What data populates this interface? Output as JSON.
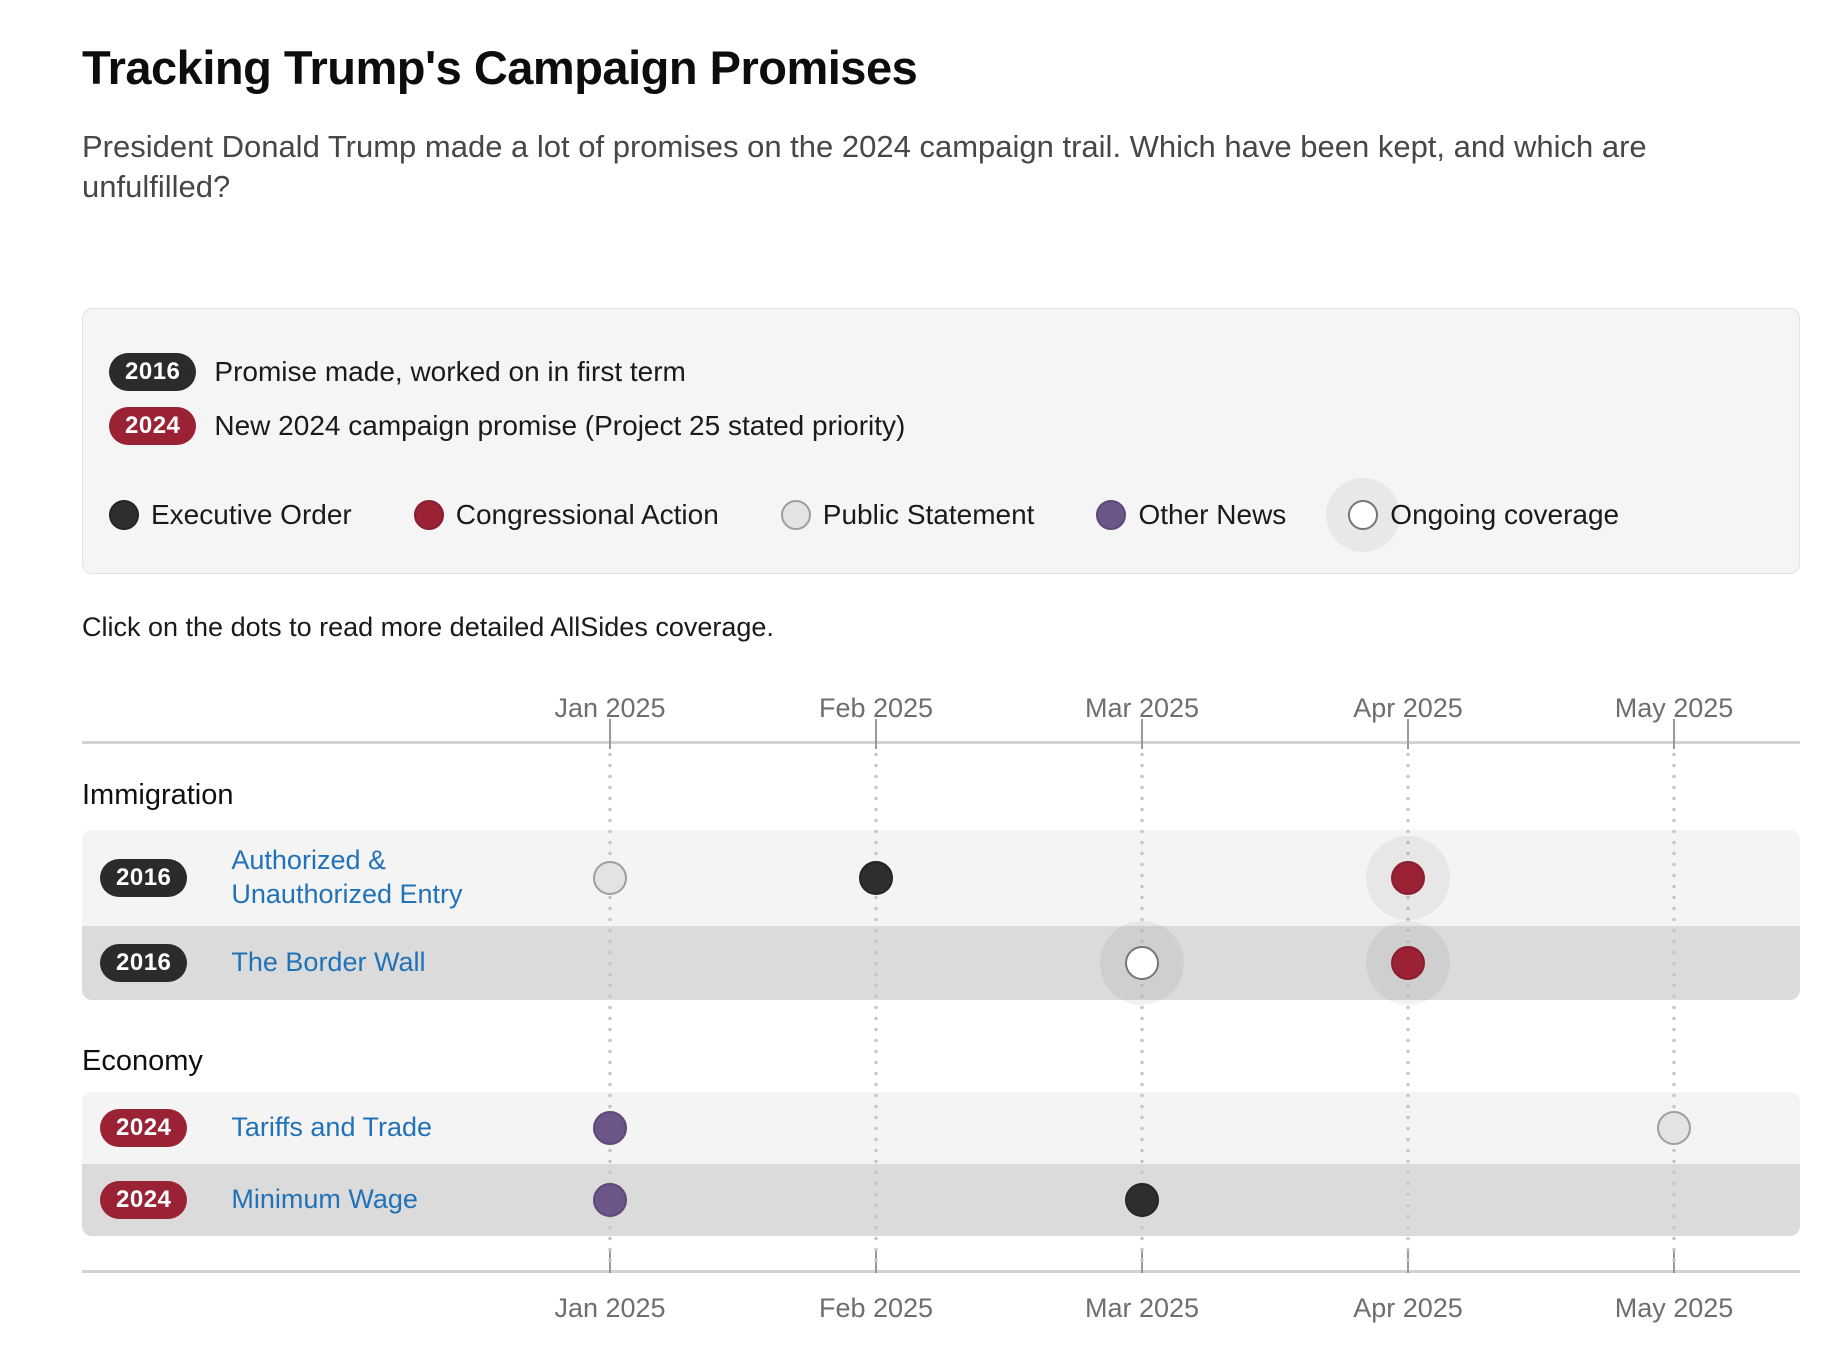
{
  "page": {
    "title": "Tracking Trump's Campaign Promises",
    "subtitle": "President Donald Trump made a lot of promises on the 2024 campaign trail. Which have been kept, and which are unfulfilled?",
    "instruction": "Click on the dots to read more detailed AllSides coverage."
  },
  "legend": {
    "badges": [
      {
        "label": "2016",
        "color": "#2b2b2b",
        "description": "Promise made, worked on in first term"
      },
      {
        "label": "2024",
        "color": "#9b2234",
        "description": "New 2024 campaign promise (Project 25 stated priority)"
      }
    ],
    "dot_types": [
      {
        "label": "Executive Order",
        "fill": "#2e2e2e",
        "border": "#242424",
        "halo": false
      },
      {
        "label": "Congressional Action",
        "fill": "#9b2234",
        "border": "#8a1d2f",
        "halo": false
      },
      {
        "label": "Public Statement",
        "fill": "#e3e3e3",
        "border": "#9e9e9e",
        "halo": false
      },
      {
        "label": "Other News",
        "fill": "#6c5687",
        "border": "#5d4876",
        "halo": false
      },
      {
        "label": "Ongoing coverage",
        "fill": "#ffffff",
        "border": "#767676",
        "halo": true
      }
    ]
  },
  "chart_data": {
    "type": "timeline-dot",
    "x_axis": {
      "labels": [
        "Jan 2025",
        "Feb 2025",
        "Mar 2025",
        "Apr 2025",
        "May 2025"
      ]
    },
    "sections": [
      {
        "name": "Immigration",
        "rows": [
          {
            "badge": "2016",
            "label": "Authorized & Unauthorized Entry",
            "events": [
              {
                "month": "Jan 2025",
                "type": "Public Statement",
                "halo": false
              },
              {
                "month": "Feb 2025",
                "type": "Executive Order",
                "halo": false
              },
              {
                "month": "Apr 2025",
                "type": "Congressional Action",
                "halo": true
              }
            ]
          },
          {
            "badge": "2016",
            "label": "The Border Wall",
            "events": [
              {
                "month": "Mar 2025",
                "type": "Ongoing coverage",
                "halo": false
              },
              {
                "month": "Apr 2025",
                "type": "Congressional Action",
                "halo": true
              }
            ]
          }
        ]
      },
      {
        "name": "Economy",
        "rows": [
          {
            "badge": "2024",
            "label": "Tariffs and Trade",
            "events": [
              {
                "month": "Jan 2025",
                "type": "Other News",
                "halo": false
              },
              {
                "month": "May 2025",
                "type": "Public Statement",
                "halo": false
              }
            ]
          },
          {
            "badge": "2024",
            "label": "Minimum Wage",
            "events": [
              {
                "month": "Jan 2025",
                "type": "Other News",
                "halo": false
              },
              {
                "month": "Mar 2025",
                "type": "Executive Order",
                "halo": false
              }
            ]
          }
        ]
      }
    ]
  }
}
